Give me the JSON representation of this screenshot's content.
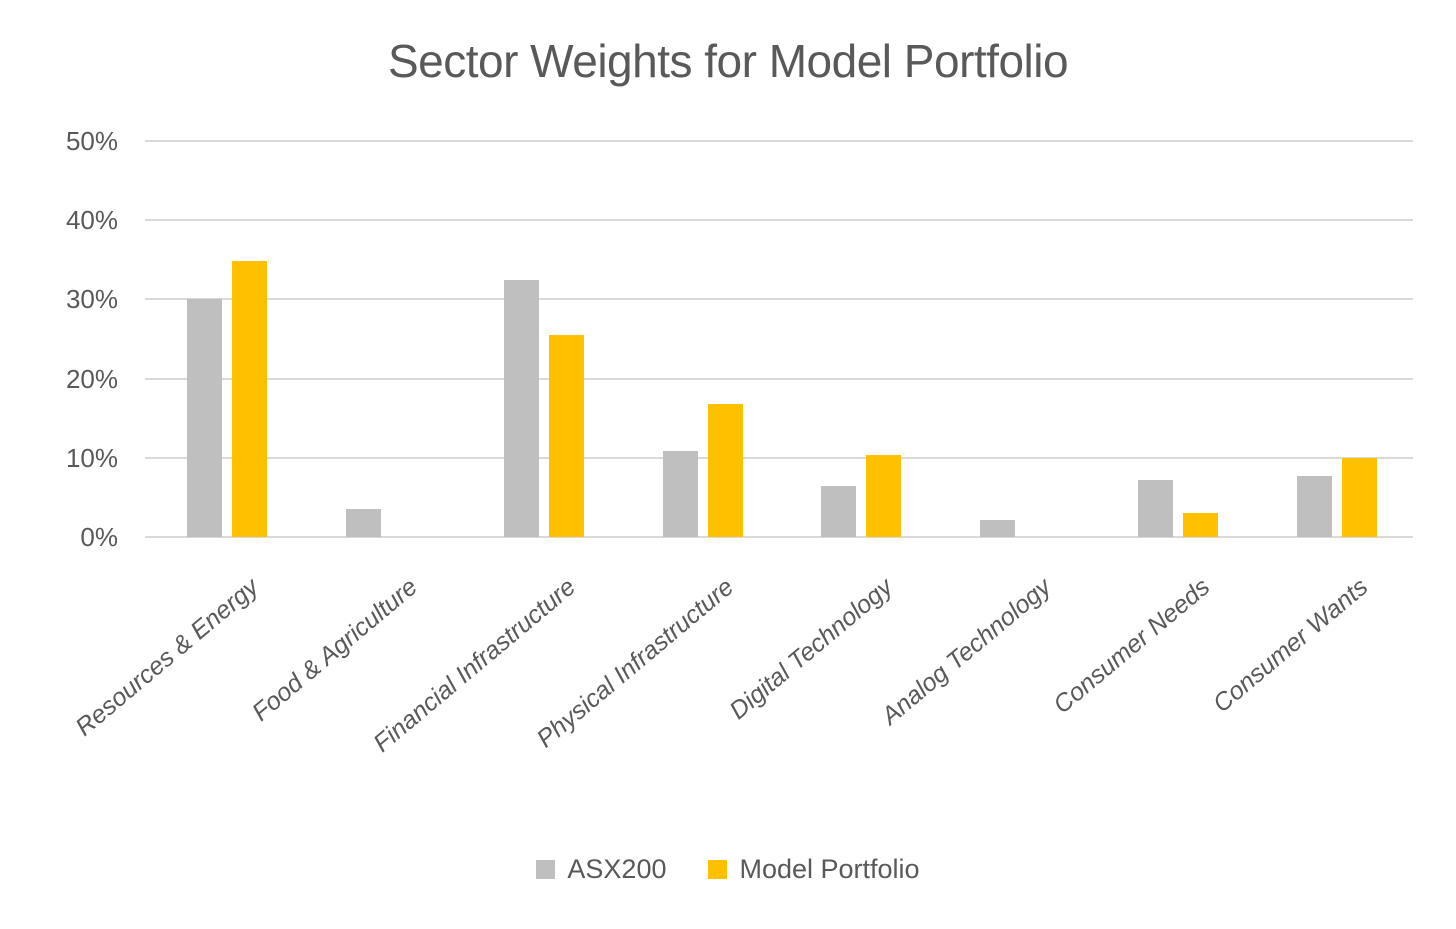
{
  "chart_data": {
    "type": "bar",
    "title": "Sector Weights for Model Portfolio",
    "categories": [
      "Resources & Energy",
      "Food & Agriculture",
      "Financial Infrastructure",
      "Physical Infrastructure",
      "Digital Technology",
      "Analog Technology",
      "Consumer Needs",
      "Consumer Wants"
    ],
    "series": [
      {
        "name": "ASX200",
        "color": "#BFBFBF",
        "values": [
          30.0,
          3.5,
          32.5,
          10.8,
          6.5,
          2.2,
          7.2,
          7.7
        ]
      },
      {
        "name": "Model Portfolio",
        "color": "#FFC000",
        "values": [
          34.8,
          0,
          25.5,
          16.8,
          10.3,
          0,
          3.0,
          10.0
        ]
      }
    ],
    "ylabel": "",
    "xlabel": "",
    "ylim": [
      0,
      50
    ],
    "yticks": [
      0,
      10,
      20,
      30,
      40,
      50
    ],
    "ytick_labels": [
      "0%",
      "10%",
      "20%",
      "30%",
      "40%",
      "50%"
    ],
    "grid": true,
    "legend_position": "bottom",
    "text_color": "#595959",
    "gridline_color": "#D9D9D9"
  }
}
